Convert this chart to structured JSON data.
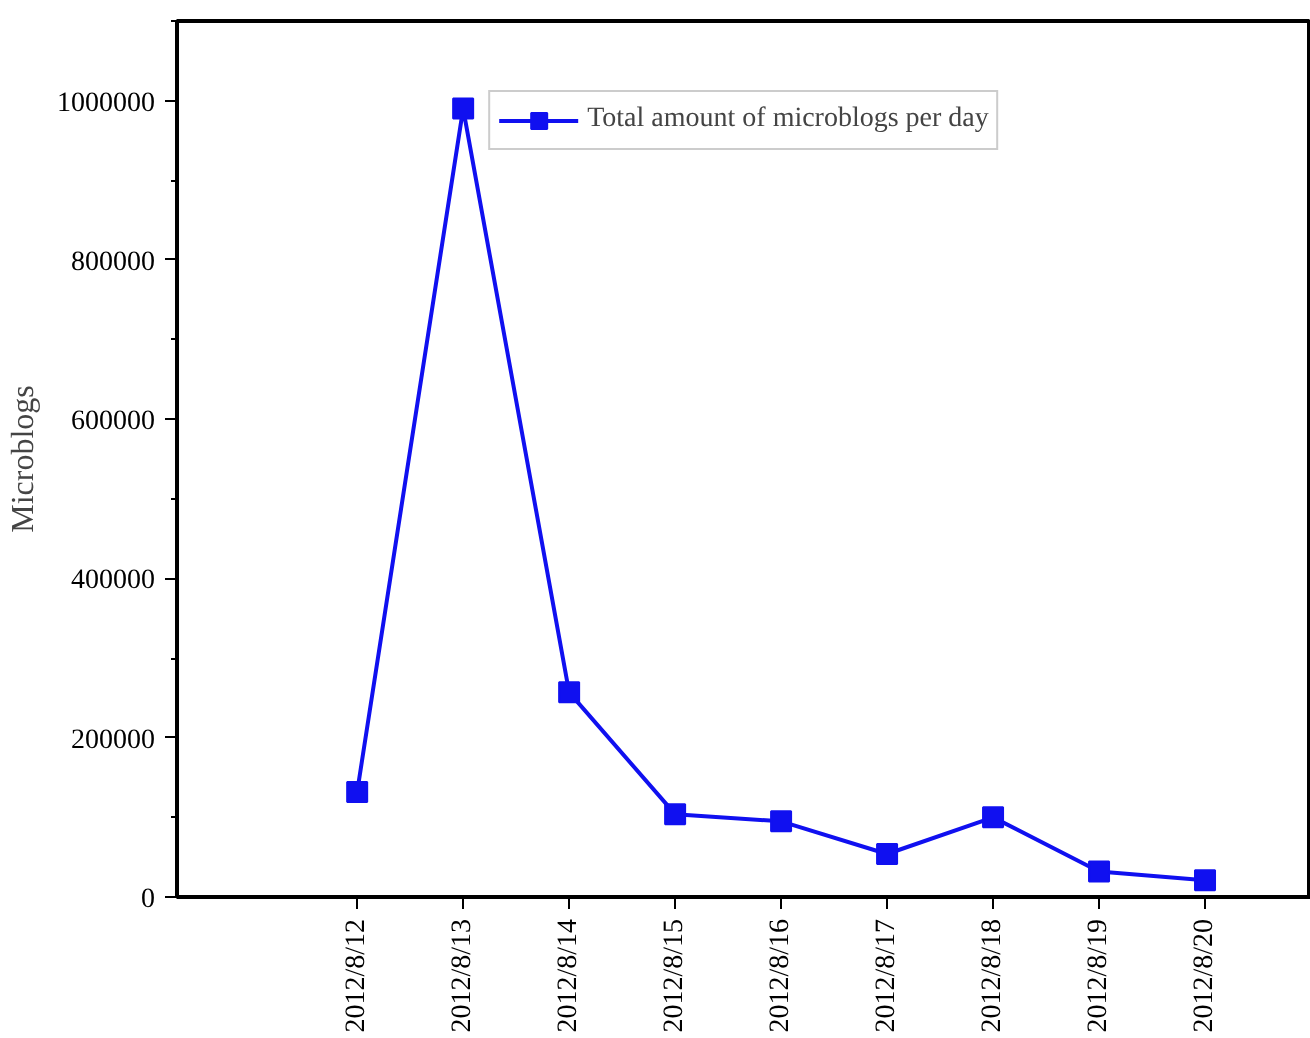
{
  "chart_data": {
    "type": "line",
    "ylabel": "Microblogs",
    "categories": [
      "2012/8/12",
      "2012/8/13",
      "2012/8/14",
      "2012/8/15",
      "2012/8/16",
      "2012/8/17",
      "2012/8/18",
      "2012/8/19",
      "2012/8/20"
    ],
    "series": [
      {
        "name": "Total amount of microblogs per day",
        "color": "#1010f0",
        "values": [
          132000,
          990000,
          257000,
          104000,
          95000,
          54000,
          100000,
          32000,
          21000
        ]
      }
    ],
    "ylim": [
      0,
      1100000
    ],
    "yticks": [
      0,
      200000,
      400000,
      600000,
      800000,
      1000000
    ],
    "grid": false,
    "legend": "top",
    "marker": "square",
    "line_style": "solid"
  }
}
